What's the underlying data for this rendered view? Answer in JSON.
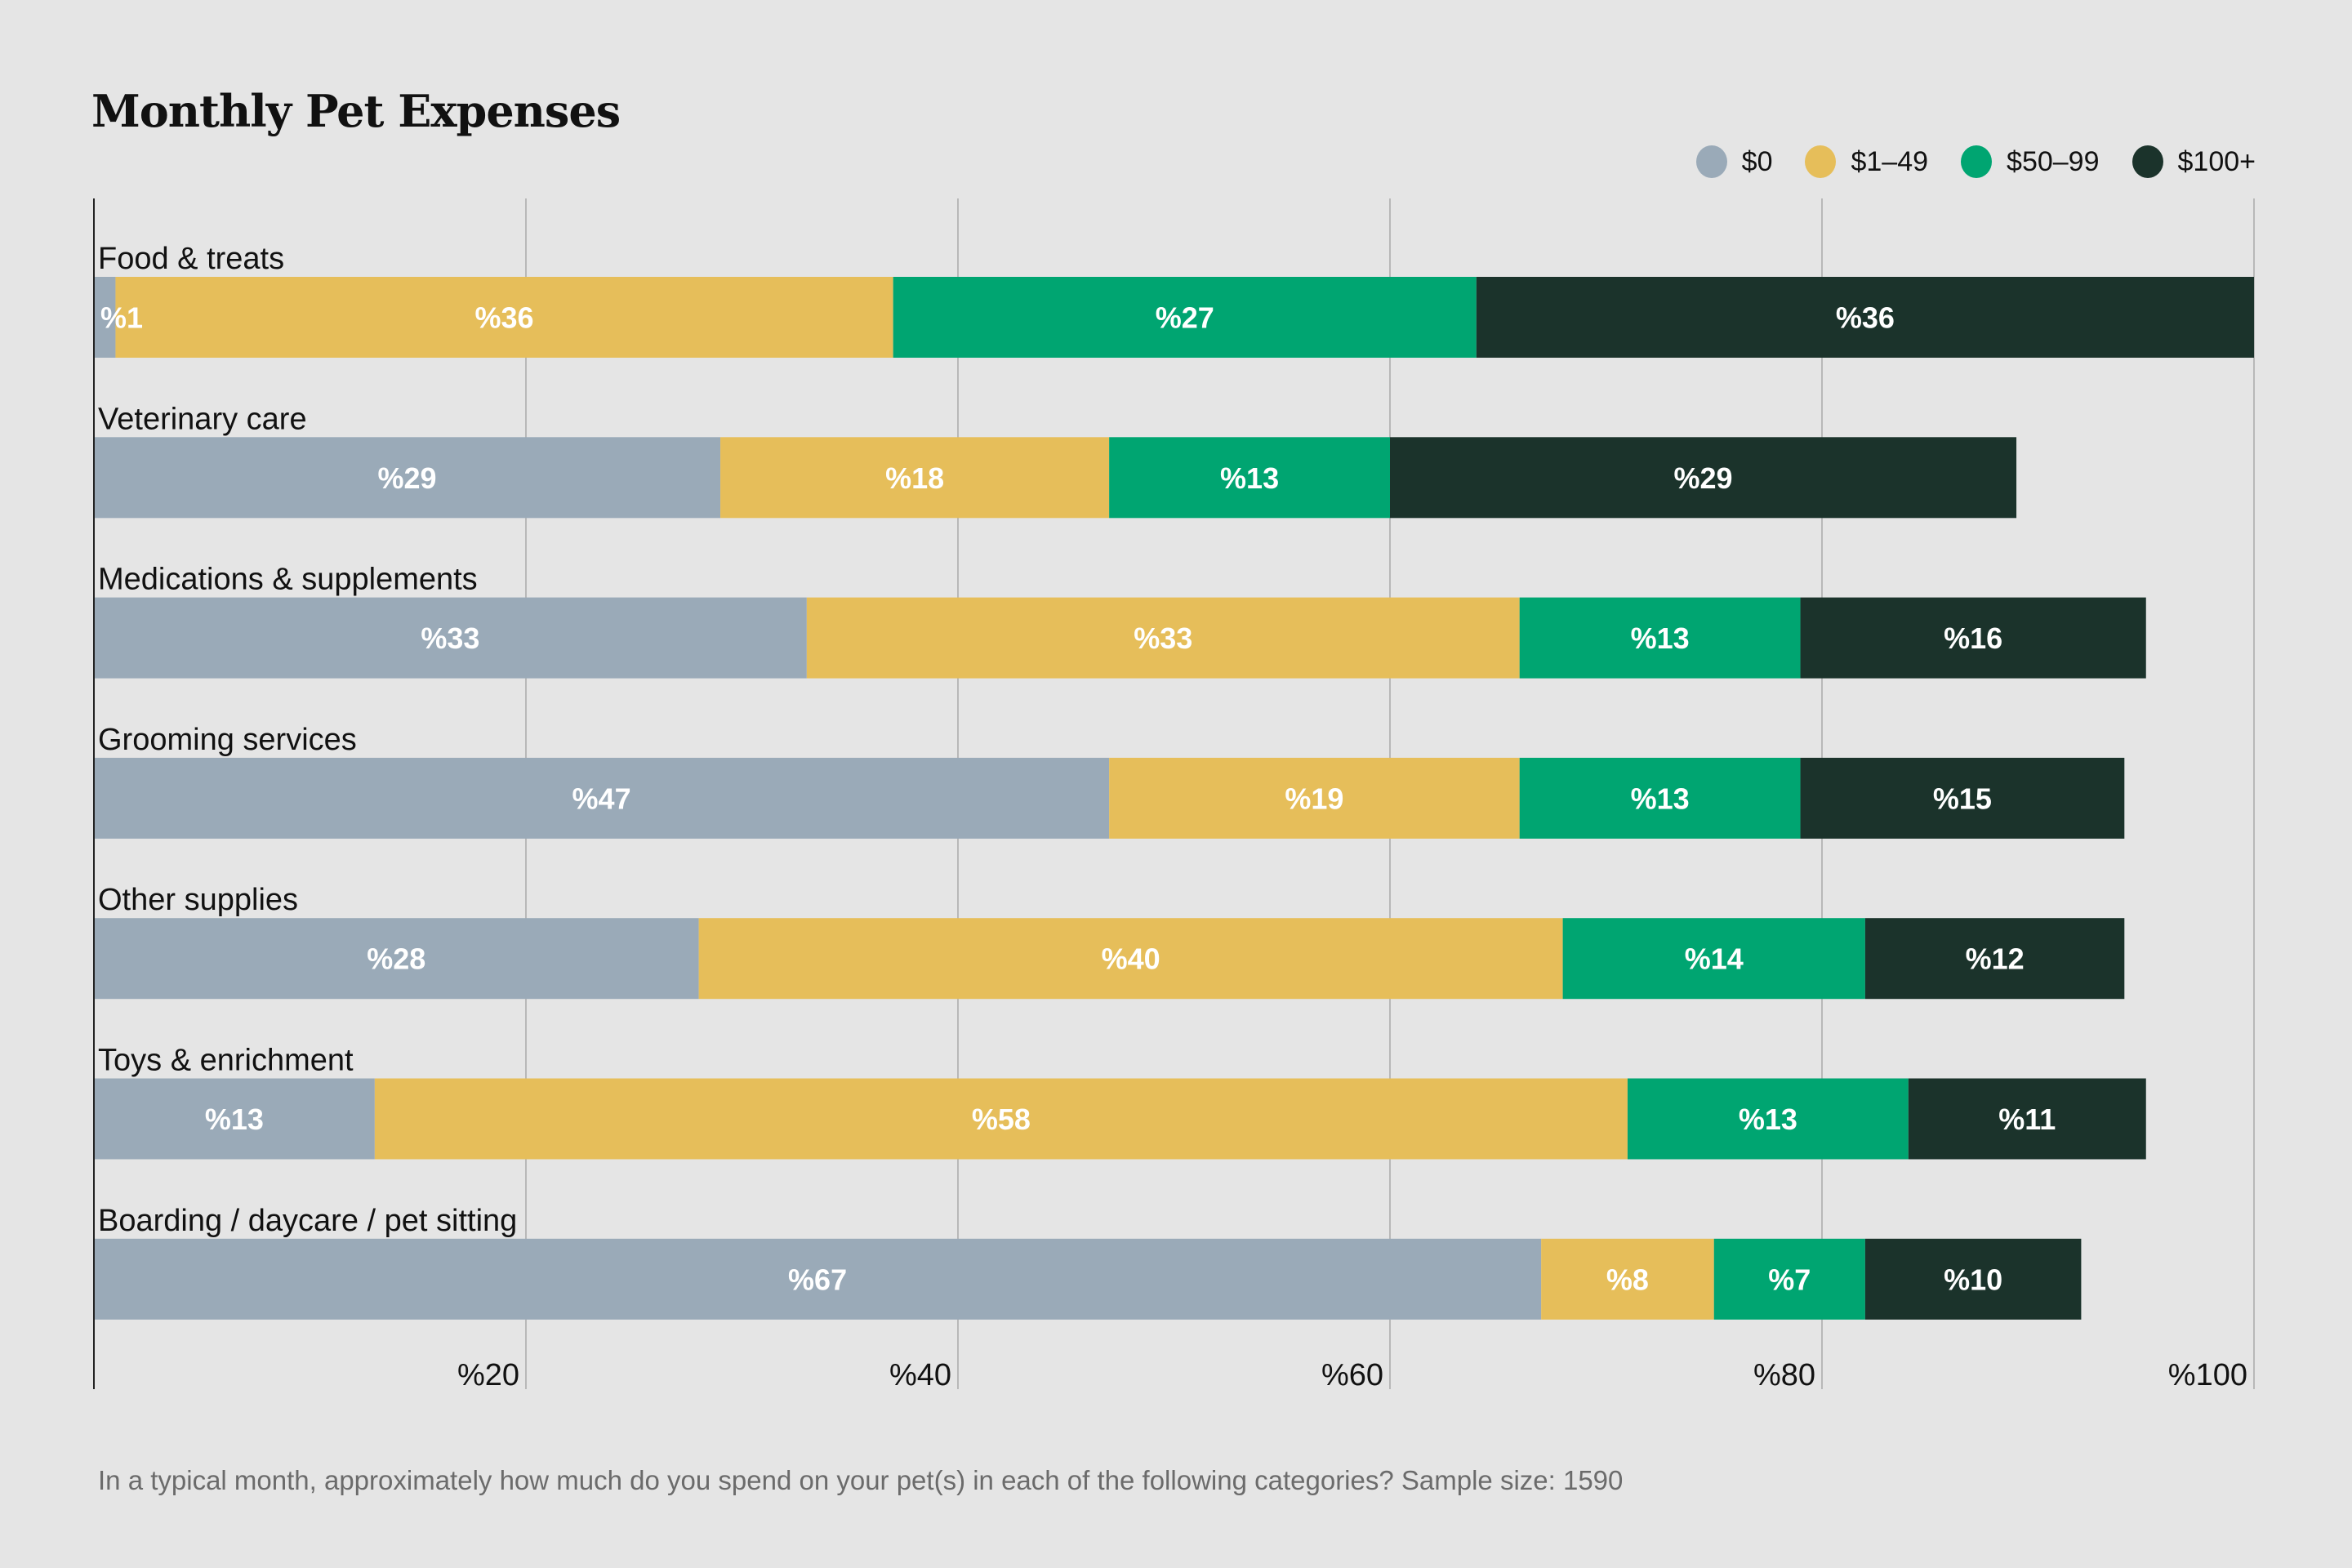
{
  "chart_data": {
    "type": "bar",
    "orientation": "horizontal",
    "stacked": true,
    "title": "Monthly Pet Expenses",
    "xlabel": "",
    "ylabel": "",
    "xlim": [
      0,
      100
    ],
    "x_ticks": [
      20,
      40,
      60,
      80,
      100
    ],
    "x_tick_labels": [
      "%20",
      "%40",
      "%60",
      "%80",
      "%100"
    ],
    "grid": true,
    "legend_position": "top-right",
    "categories": [
      "Food & treats",
      "Veterinary care",
      "Medications & supplements",
      "Grooming services",
      "Other supplies",
      "Toys & enrichment",
      "Boarding / daycare / pet sitting"
    ],
    "series": [
      {
        "name": "$0",
        "color": "#9aaab8",
        "values": [
          1,
          29,
          33,
          47,
          28,
          13,
          67
        ]
      },
      {
        "name": "$1–49",
        "color": "#e6be5a",
        "values": [
          36,
          18,
          33,
          19,
          40,
          58,
          8
        ]
      },
      {
        "name": "$50–99",
        "color": "#00a571",
        "values": [
          27,
          13,
          13,
          13,
          14,
          13,
          7
        ]
      },
      {
        "name": "$100+",
        "color": "#1b332b",
        "values": [
          36,
          29,
          16,
          15,
          12,
          11,
          10
        ]
      }
    ],
    "value_label_format": "%{value}",
    "footnote": "In a typical month, approximately how much do you spend on your pet(s) in each of the following categories? Sample size: 1590"
  },
  "colors": {
    "background": "#e5e5e5",
    "gridline": "#b8b8b8",
    "axis": "#222222",
    "value_label": "#ffffff"
  }
}
